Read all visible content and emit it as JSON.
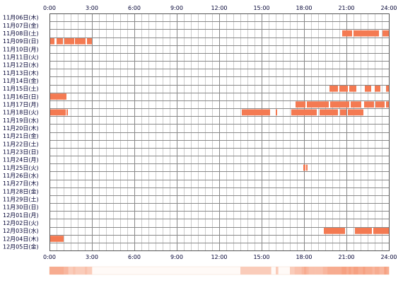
{
  "chart_data": {
    "type": "timeline-heatmap",
    "x_axis": {
      "unit": "hour",
      "range": [
        0,
        24
      ],
      "ticks": [
        "0:00",
        "3:00",
        "6:00",
        "9:00",
        "12:00",
        "15:00",
        "18:00",
        "21:00",
        "24:00"
      ],
      "positions": [
        "top",
        "bottom"
      ]
    },
    "grid": true,
    "colors": {
      "active": "#f47a52",
      "grid_major": "#888888",
      "grid_minor": "#cccccc",
      "frame": "#555555",
      "label_text": "#000033",
      "summary_low": "#fde8df",
      "summary_high": "#f6a182"
    },
    "rows": [
      {
        "label": "11月06日(木)",
        "intervals": []
      },
      {
        "label": "11月07日(金)",
        "intervals": []
      },
      {
        "label": "11月08日(土)",
        "intervals": [
          [
            20.7,
            21.4
          ],
          [
            21.5,
            23.3
          ],
          [
            23.55,
            24.0
          ]
        ]
      },
      {
        "label": "11月09日(日)",
        "intervals": [
          [
            0.0,
            0.35
          ],
          [
            0.5,
            0.95
          ],
          [
            1.05,
            1.75
          ],
          [
            1.8,
            2.55
          ],
          [
            2.65,
            3.0
          ]
        ]
      },
      {
        "label": "11月10日(月)",
        "intervals": []
      },
      {
        "label": "11月11日(火)",
        "intervals": []
      },
      {
        "label": "11月12日(水)",
        "intervals": []
      },
      {
        "label": "11月13日(木)",
        "intervals": []
      },
      {
        "label": "11月14日(金)",
        "intervals": []
      },
      {
        "label": "11月15日(土)",
        "intervals": [
          [
            19.8,
            20.4
          ],
          [
            20.5,
            21.1
          ],
          [
            21.2,
            21.7
          ],
          [
            22.3,
            22.75
          ],
          [
            23.0,
            23.4
          ],
          [
            23.8,
            24.0
          ]
        ]
      },
      {
        "label": "11月16日(日)",
        "intervals": [
          [
            0.0,
            1.2
          ]
        ]
      },
      {
        "label": "11月17日(月)",
        "intervals": [
          [
            17.4,
            18.1
          ],
          [
            18.2,
            19.75
          ],
          [
            19.85,
            21.2
          ],
          [
            21.3,
            22.05
          ],
          [
            22.25,
            22.95
          ],
          [
            23.05,
            23.7
          ],
          [
            23.8,
            24.0
          ]
        ]
      },
      {
        "label": "11月18日(火)",
        "intervals": [
          [
            0.0,
            1.15
          ],
          [
            1.2,
            1.3
          ],
          [
            13.6,
            15.6
          ],
          [
            16.0,
            16.1
          ],
          [
            17.1,
            18.9
          ],
          [
            19.1,
            20.4
          ],
          [
            20.55,
            21.0
          ],
          [
            21.1,
            22.2
          ]
        ]
      },
      {
        "label": "11月19日(水)",
        "intervals": []
      },
      {
        "label": "11月20日(木)",
        "intervals": []
      },
      {
        "label": "11月21日(金)",
        "intervals": []
      },
      {
        "label": "11月22日(土)",
        "intervals": []
      },
      {
        "label": "11月23日(日)",
        "intervals": []
      },
      {
        "label": "11月24日(月)",
        "intervals": []
      },
      {
        "label": "11月25日(火)",
        "intervals": [
          [
            17.95,
            18.1
          ],
          [
            18.15,
            18.25
          ]
        ]
      },
      {
        "label": "11月26日(水)",
        "intervals": []
      },
      {
        "label": "11月27日(木)",
        "intervals": []
      },
      {
        "label": "11月28日(金)",
        "intervals": []
      },
      {
        "label": "11月29日(土)",
        "intervals": []
      },
      {
        "label": "11月30日(日)",
        "intervals": []
      },
      {
        "label": "12月01日(月)",
        "intervals": []
      },
      {
        "label": "12月02日(火)",
        "intervals": []
      },
      {
        "label": "12月03日(水)",
        "intervals": [
          [
            19.4,
            20.9
          ],
          [
            21.6,
            22.8
          ],
          [
            22.9,
            24.0
          ]
        ]
      },
      {
        "label": "12月04日(木)",
        "intervals": [
          [
            0.0,
            1.0
          ]
        ]
      },
      {
        "label": "12月05日(金)",
        "intervals": []
      }
    ]
  }
}
